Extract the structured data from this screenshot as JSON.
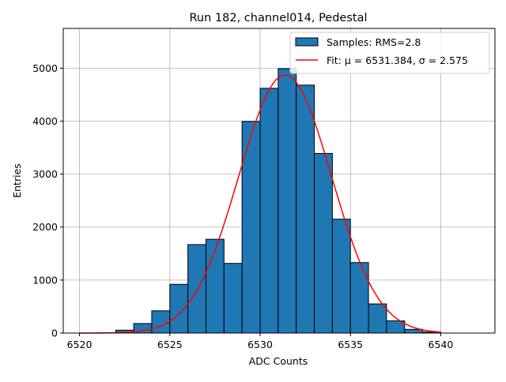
{
  "chart_data": {
    "type": "bar",
    "title": "Run 182, channel014, Pedestal",
    "xlabel": "ADC Counts",
    "ylabel": "Entries",
    "xlim": [
      6519.1,
      6543.0
    ],
    "ylim": [
      0,
      5750
    ],
    "xticks": [
      6520,
      6525,
      6530,
      6535,
      6540
    ],
    "yticks": [
      0,
      1000,
      2000,
      3000,
      4000,
      5000
    ],
    "grid": true,
    "legend_position": "top-right",
    "bin_edges": [
      6520,
      6521,
      6522,
      6523,
      6524,
      6525,
      6526,
      6527,
      6528,
      6529,
      6530,
      6531,
      6532,
      6533,
      6534,
      6535,
      6536,
      6537,
      6538,
      6539,
      6540
    ],
    "bin_counts": [
      0,
      5,
      55,
      180,
      420,
      920,
      1670,
      1770,
      1315,
      3995,
      4620,
      4990,
      4680,
      3390,
      2150,
      1330,
      550,
      230,
      70,
      20
    ],
    "fit": {
      "mu": 6531.384,
      "sigma": 2.575,
      "amplitude": 4870,
      "x_range": [
        6520,
        6540
      ]
    },
    "colors": {
      "bars": "#1f77b4",
      "bar_edge": "#000000",
      "fit": "#ff0000",
      "grid": "#b0b0b0"
    },
    "series": [
      {
        "name": "Samples: RMS=2.8",
        "kind": "histogram"
      },
      {
        "name": "Fit: μ = 6531.384, σ = 2.575",
        "kind": "line"
      }
    ]
  }
}
